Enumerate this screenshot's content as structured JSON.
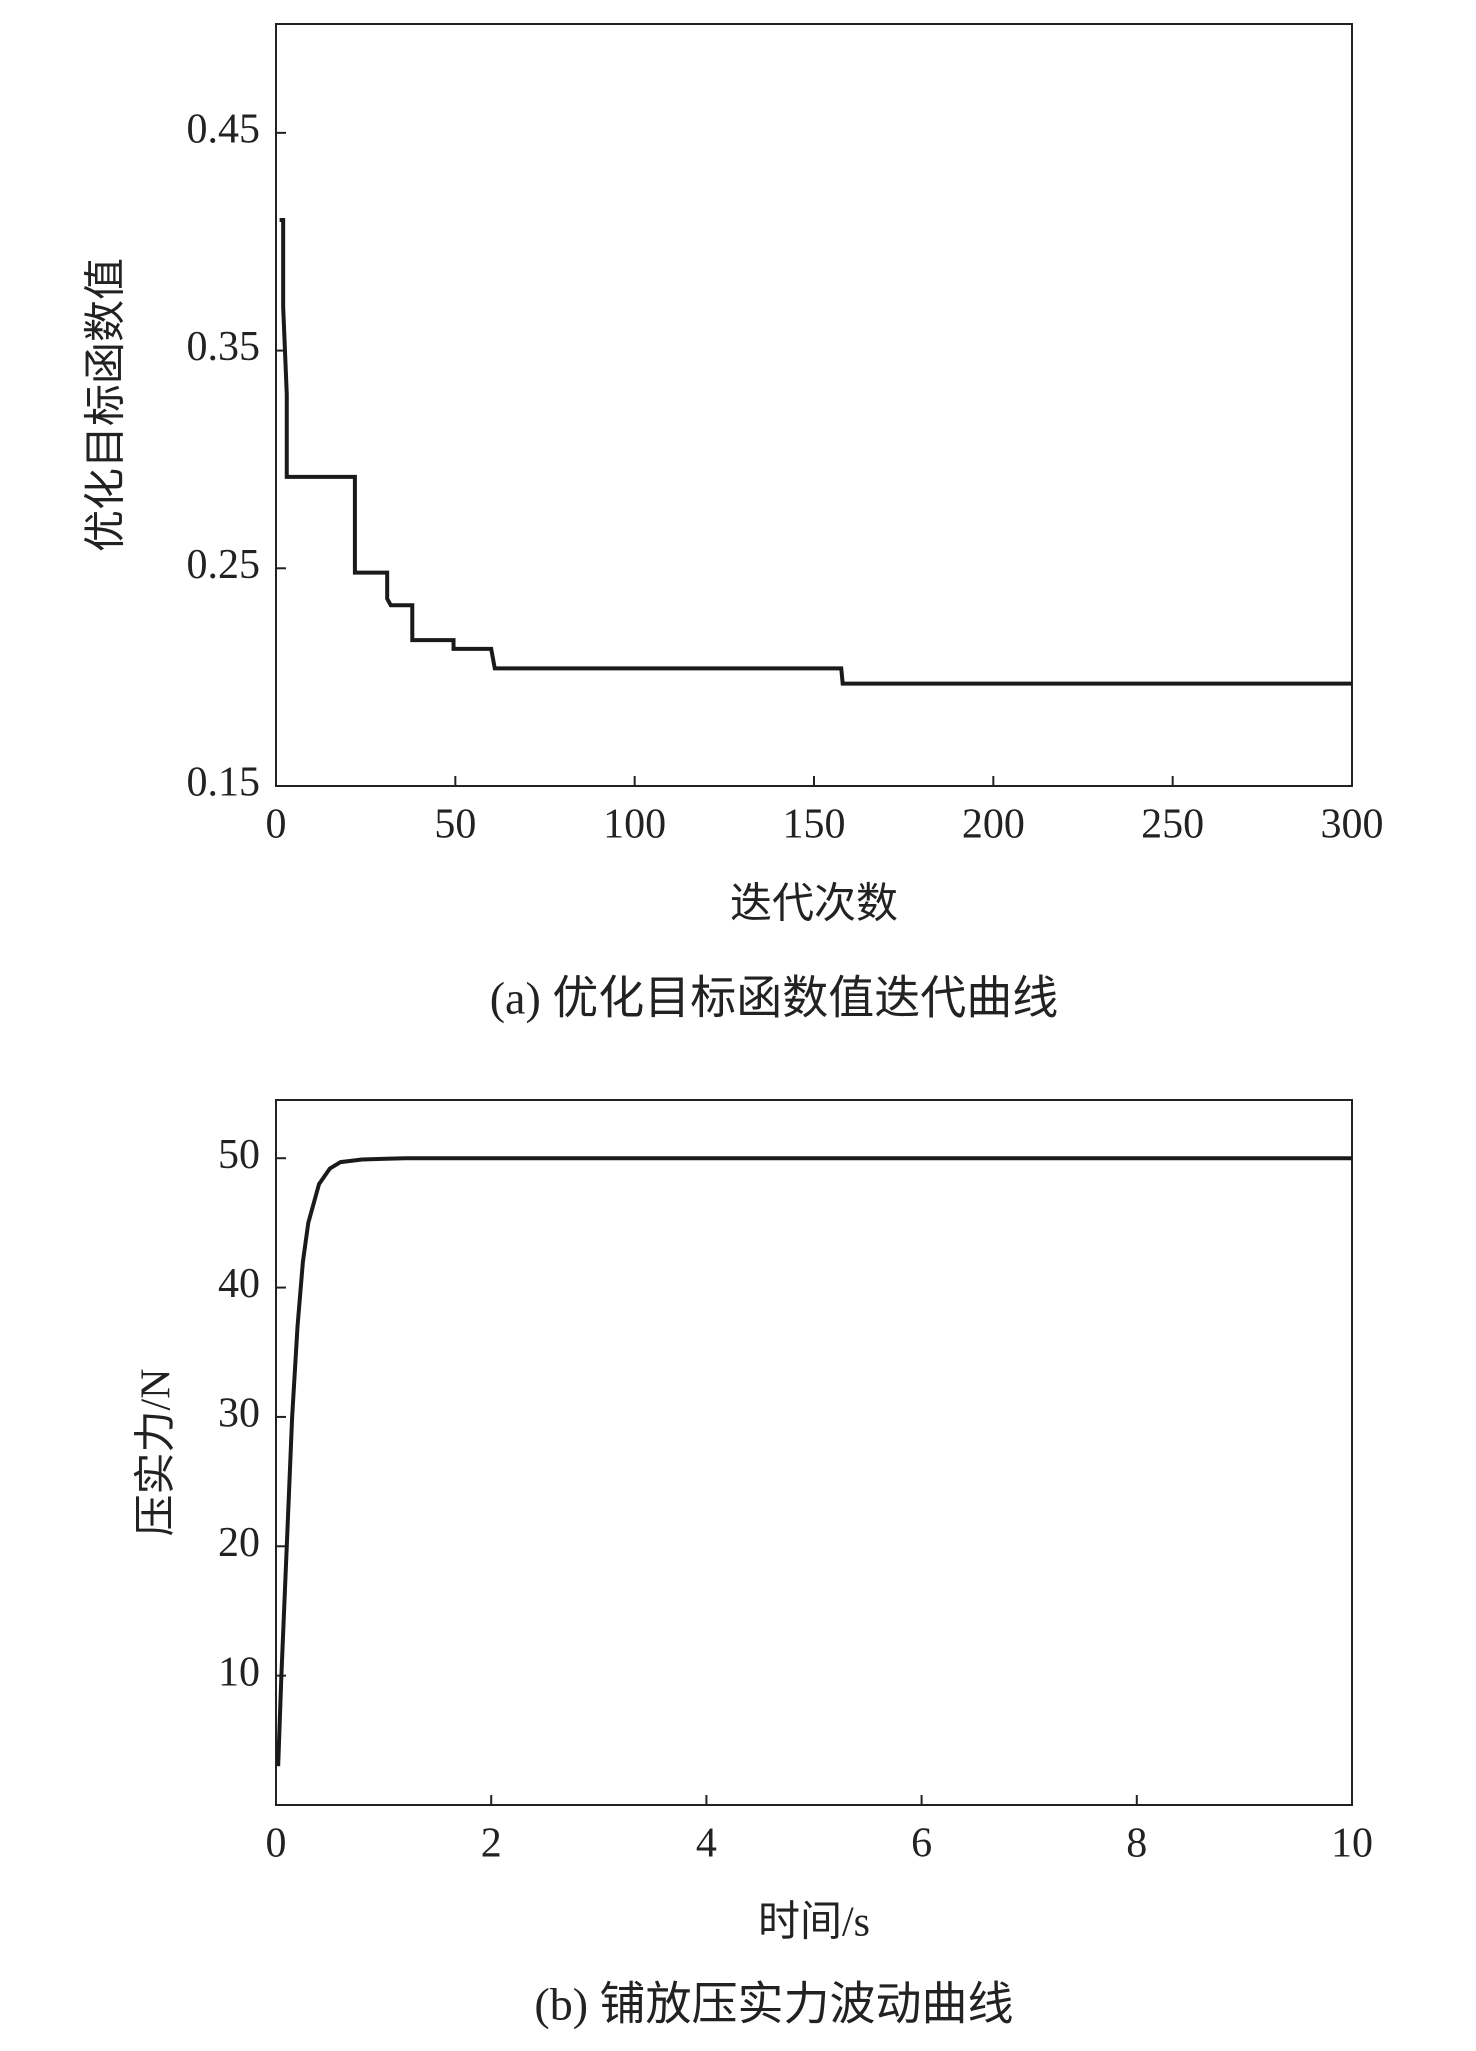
{
  "chart_data": [
    {
      "type": "line",
      "caption": "(a) 优化目标函数值迭代曲线",
      "xlabel": "迭代次数",
      "ylabel": "优化目标函数值",
      "x": [
        1,
        2,
        2,
        3,
        3,
        22,
        22,
        31,
        31,
        32,
        38,
        38,
        49.5,
        49.5,
        60,
        61,
        157.6,
        158,
        300
      ],
      "values": [
        0.41,
        0.41,
        0.37,
        0.33,
        0.292,
        0.292,
        0.248,
        0.248,
        0.236,
        0.233,
        0.233,
        0.217,
        0.217,
        0.213,
        0.213,
        0.204,
        0.204,
        0.197,
        0.197
      ],
      "color": "#1a1a1a",
      "xlim": [
        0,
        300
      ],
      "xticks": [
        0,
        50,
        100,
        150,
        200,
        250,
        300
      ],
      "ylim": [
        0.15,
        0.5
      ],
      "yticks": [
        0.15,
        0.25,
        0.35,
        0.45
      ]
    },
    {
      "type": "line",
      "caption": "(b) 铺放压实力波动曲线",
      "xlabel": "时间/s",
      "ylabel": "压实力/N",
      "x": [
        0.02,
        0.05,
        0.1,
        0.15,
        0.2,
        0.25,
        0.3,
        0.4,
        0.5,
        0.6,
        0.8,
        1.2,
        10
      ],
      "values": [
        3,
        10,
        20,
        30,
        37,
        42,
        45,
        48,
        49.2,
        49.7,
        49.9,
        50,
        50
      ],
      "color": "#1a1a1a",
      "xlim": [
        0,
        10
      ],
      "xticks": [
        0,
        2,
        4,
        6,
        8,
        10
      ],
      "ylim": [
        0,
        54.5
      ],
      "yticks": [
        10,
        20,
        30,
        40,
        50
      ]
    }
  ]
}
